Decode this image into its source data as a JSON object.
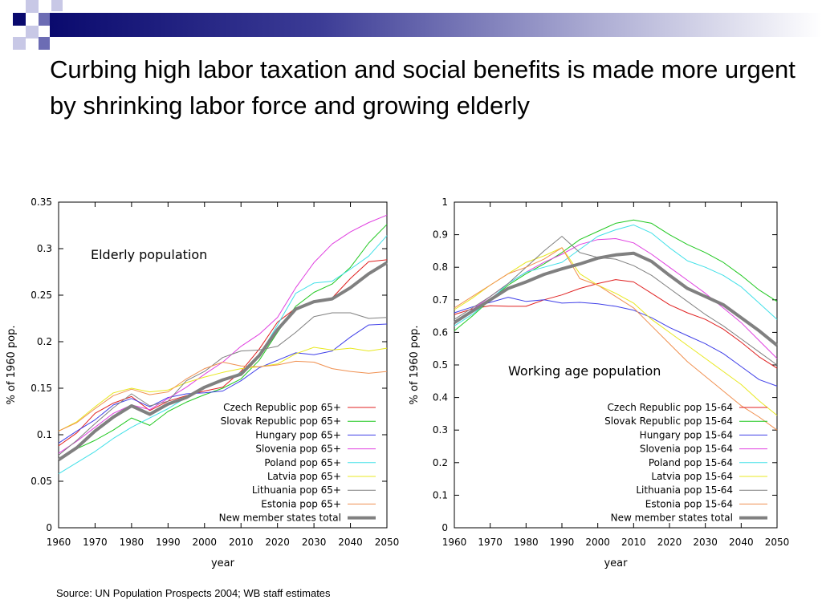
{
  "slide": {
    "title": "Curbing high labor taxation and social benefits is made more urgent by shrinking labor force and growing elderly",
    "source": "Source: UN Population Prospects 2004; WB staff estimates",
    "colors": {
      "banner_dark": "#0a0a6e",
      "banner_mid": "#6c6cb4",
      "banner_light": "#c8c8e6"
    }
  },
  "chart_data": [
    {
      "type": "line",
      "annotation": "Elderly population",
      "xlabel": "year",
      "ylabel": "% of 1960 pop.",
      "xlim": [
        1960,
        2050
      ],
      "ylim": [
        0,
        0.35
      ],
      "x_ticks": [
        "1960",
        "1970",
        "1980",
        "1990",
        "2000",
        "2010",
        "2020",
        "2030",
        "2040",
        "2050"
      ],
      "y_ticks": [
        "0",
        "0.05",
        "0.1",
        "0.15",
        "0.2",
        "0.25",
        "0.3",
        "0.35"
      ],
      "grid": false,
      "legend_position": "bottom-right",
      "x": [
        1960,
        1965,
        1970,
        1975,
        1980,
        1985,
        1990,
        1995,
        2000,
        2005,
        2010,
        2015,
        2020,
        2025,
        2030,
        2035,
        2040,
        2045,
        2050
      ],
      "series": [
        {
          "name": "Czech Republic pop 65+",
          "color": "#e02020",
          "width": 1,
          "values": [
            0.088,
            0.102,
            0.123,
            0.134,
            0.141,
            0.126,
            0.136,
            0.142,
            0.147,
            0.151,
            0.168,
            0.192,
            0.221,
            0.236,
            0.243,
            0.247,
            0.268,
            0.286,
            0.288
          ]
        },
        {
          "name": "Slovak Republic pop 65+",
          "color": "#20c820",
          "width": 1,
          "values": [
            0.074,
            0.085,
            0.094,
            0.105,
            0.118,
            0.11,
            0.125,
            0.135,
            0.143,
            0.15,
            0.16,
            0.18,
            0.21,
            0.238,
            0.253,
            0.262,
            0.28,
            0.306,
            0.326
          ]
        },
        {
          "name": "Hungary pop 65+",
          "color": "#4040e8",
          "width": 1,
          "values": [
            0.091,
            0.104,
            0.116,
            0.132,
            0.139,
            0.13,
            0.14,
            0.144,
            0.145,
            0.147,
            0.158,
            0.172,
            0.18,
            0.188,
            0.186,
            0.19,
            0.205,
            0.218,
            0.219
          ]
        },
        {
          "name": "Slovenia pop 65+",
          "color": "#e040e0",
          "width": 1,
          "values": [
            0.08,
            0.093,
            0.108,
            0.123,
            0.132,
            0.127,
            0.139,
            0.151,
            0.165,
            0.178,
            0.195,
            0.208,
            0.226,
            0.258,
            0.285,
            0.305,
            0.318,
            0.328,
            0.336
          ]
        },
        {
          "name": "Poland pop 65+",
          "color": "#40e0e8",
          "width": 1,
          "values": [
            0.058,
            0.07,
            0.082,
            0.096,
            0.108,
            0.118,
            0.128,
            0.14,
            0.15,
            0.158,
            0.167,
            0.185,
            0.218,
            0.252,
            0.263,
            0.265,
            0.278,
            0.292,
            0.314
          ]
        },
        {
          "name": "Latvia pop 65+",
          "color": "#e8e820",
          "width": 1,
          "values": [
            0.104,
            0.114,
            0.13,
            0.145,
            0.15,
            0.146,
            0.148,
            0.156,
            0.162,
            0.167,
            0.171,
            0.173,
            0.176,
            0.187,
            0.194,
            0.191,
            0.193,
            0.19,
            0.193
          ]
        },
        {
          "name": "Lithuania pop 65+",
          "color": "#808080",
          "width": 1,
          "values": [
            0.078,
            0.094,
            0.112,
            0.129,
            0.144,
            0.131,
            0.136,
            0.158,
            0.168,
            0.183,
            0.19,
            0.191,
            0.195,
            0.21,
            0.227,
            0.231,
            0.231,
            0.225,
            0.226
          ]
        },
        {
          "name": "Estonia pop 65+",
          "color": "#f09050",
          "width": 1,
          "values": [
            0.104,
            0.113,
            0.128,
            0.142,
            0.149,
            0.143,
            0.146,
            0.16,
            0.171,
            0.178,
            0.174,
            0.173,
            0.175,
            0.179,
            0.178,
            0.171,
            0.168,
            0.166,
            0.168
          ]
        },
        {
          "name": "New member states total",
          "color": "#808080",
          "width": 4,
          "values": [
            0.073,
            0.086,
            0.104,
            0.119,
            0.131,
            0.122,
            0.133,
            0.14,
            0.151,
            0.159,
            0.165,
            0.185,
            0.213,
            0.235,
            0.243,
            0.246,
            0.258,
            0.273,
            0.285
          ]
        }
      ]
    },
    {
      "type": "line",
      "annotation": "Working age population",
      "xlabel": "year",
      "ylabel": "% of 1960 pop.",
      "xlim": [
        1960,
        2050
      ],
      "ylim": [
        0,
        1
      ],
      "x_ticks": [
        "1960",
        "1970",
        "1980",
        "1990",
        "2000",
        "2010",
        "2020",
        "2030",
        "2040",
        "2050"
      ],
      "y_ticks": [
        "0",
        "0.1",
        "0.2",
        "0.3",
        "0.4",
        "0.5",
        "0.6",
        "0.7",
        "0.8",
        "0.9",
        "1"
      ],
      "grid": false,
      "legend_position": "bottom-right",
      "x": [
        1960,
        1965,
        1970,
        1975,
        1980,
        1985,
        1990,
        1995,
        2000,
        2005,
        2010,
        2015,
        2020,
        2025,
        2030,
        2035,
        2040,
        2045,
        2050
      ],
      "series": [
        {
          "name": "Czech Republic pop 15-64",
          "color": "#e02020",
          "width": 1,
          "values": [
            0.655,
            0.672,
            0.682,
            0.68,
            0.68,
            0.7,
            0.715,
            0.735,
            0.75,
            0.762,
            0.755,
            0.72,
            0.685,
            0.66,
            0.64,
            0.61,
            0.57,
            0.525,
            0.49
          ]
        },
        {
          "name": "Slovak Republic pop 15-64",
          "color": "#20c820",
          "width": 1,
          "values": [
            0.605,
            0.65,
            0.7,
            0.745,
            0.78,
            0.81,
            0.845,
            0.885,
            0.91,
            0.935,
            0.945,
            0.935,
            0.9,
            0.87,
            0.845,
            0.815,
            0.775,
            0.73,
            0.695
          ]
        },
        {
          "name": "Hungary pop 15-64",
          "color": "#4040e8",
          "width": 1,
          "values": [
            0.66,
            0.678,
            0.692,
            0.708,
            0.695,
            0.7,
            0.69,
            0.692,
            0.688,
            0.68,
            0.668,
            0.645,
            0.615,
            0.59,
            0.565,
            0.535,
            0.495,
            0.455,
            0.435
          ]
        },
        {
          "name": "Slovenia pop 15-64",
          "color": "#e040e0",
          "width": 1,
          "values": [
            0.63,
            0.67,
            0.71,
            0.75,
            0.785,
            0.815,
            0.84,
            0.87,
            0.885,
            0.888,
            0.875,
            0.84,
            0.8,
            0.76,
            0.72,
            0.675,
            0.63,
            0.575,
            0.52
          ]
        },
        {
          "name": "Poland pop 15-64",
          "color": "#40e0e8",
          "width": 1,
          "values": [
            0.62,
            0.655,
            0.7,
            0.75,
            0.785,
            0.8,
            0.815,
            0.855,
            0.895,
            0.915,
            0.93,
            0.905,
            0.86,
            0.82,
            0.8,
            0.775,
            0.74,
            0.69,
            0.64
          ]
        },
        {
          "name": "Latvia pop 15-64",
          "color": "#e8e820",
          "width": 1,
          "values": [
            0.67,
            0.705,
            0.745,
            0.78,
            0.815,
            0.835,
            0.86,
            0.78,
            0.745,
            0.72,
            0.69,
            0.64,
            0.6,
            0.56,
            0.52,
            0.48,
            0.44,
            0.39,
            0.345
          ]
        },
        {
          "name": "Lithuania pop 15-64",
          "color": "#808080",
          "width": 1,
          "values": [
            0.64,
            0.675,
            0.71,
            0.75,
            0.8,
            0.85,
            0.895,
            0.845,
            0.83,
            0.825,
            0.805,
            0.775,
            0.735,
            0.695,
            0.655,
            0.62,
            0.58,
            0.54,
            0.5
          ]
        },
        {
          "name": "Estonia pop 15-64",
          "color": "#f09050",
          "width": 1,
          "values": [
            0.675,
            0.71,
            0.745,
            0.78,
            0.8,
            0.825,
            0.86,
            0.765,
            0.745,
            0.71,
            0.675,
            0.62,
            0.565,
            0.51,
            0.465,
            0.42,
            0.375,
            0.34,
            0.3
          ]
        },
        {
          "name": "New member states total",
          "color": "#808080",
          "width": 4,
          "values": [
            0.63,
            0.665,
            0.7,
            0.735,
            0.755,
            0.778,
            0.795,
            0.81,
            0.828,
            0.838,
            0.843,
            0.818,
            0.775,
            0.735,
            0.71,
            0.685,
            0.645,
            0.605,
            0.56
          ]
        }
      ]
    }
  ]
}
